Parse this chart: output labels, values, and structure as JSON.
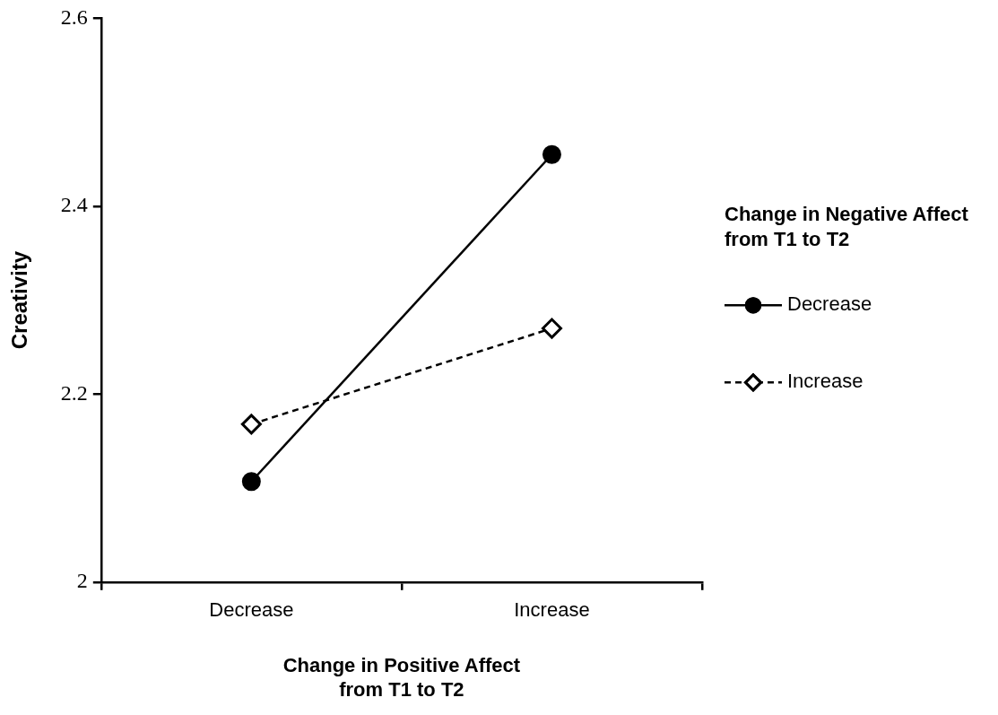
{
  "chart_data": {
    "type": "line",
    "xlabel": "Change in Positive Affect from T1 to T2",
    "ylabel": "Creativity",
    "legend_title": "Change in Negative Affect from T1 to T2",
    "categories": [
      "Decrease",
      "Increase"
    ],
    "series": [
      {
        "name": "Decrease",
        "color": "#000000",
        "values": [
          2.107,
          2.455
        ],
        "marker": "circle",
        "line_style": "solid"
      },
      {
        "name": "Increase",
        "color": "#000000",
        "values": [
          2.168,
          2.27
        ],
        "marker": "diamond",
        "line_style": "dashed"
      }
    ],
    "ylim": [
      2,
      2.6
    ],
    "yticks": [
      2,
      2.2,
      2.4,
      2.6
    ],
    "grid": false,
    "legend": "right"
  }
}
